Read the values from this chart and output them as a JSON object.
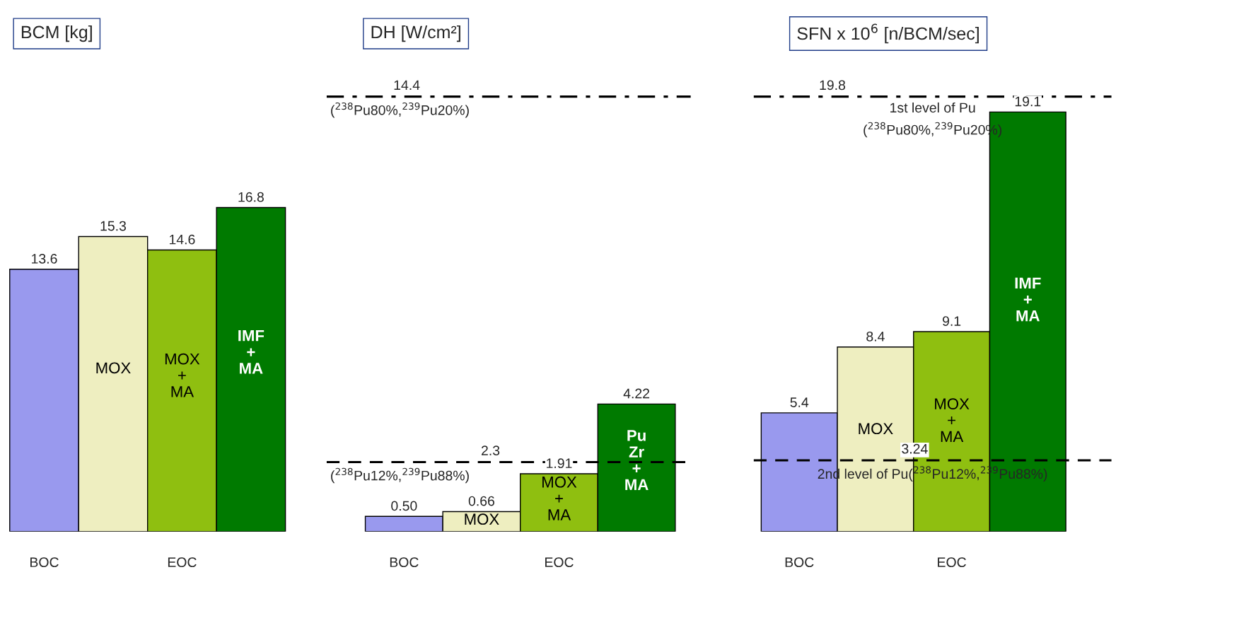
{
  "chart_data": [
    {
      "type": "bar",
      "title": "BCM [kg]",
      "categories": [
        "BOC",
        null,
        "EOC",
        null
      ],
      "tick_labels": "x",
      "legend": false,
      "data_labels": true,
      "series": [
        {
          "color": "#9999ee",
          "values": [
            13.6,
            null,
            null,
            null
          ],
          "value_labels": [
            "13.6",
            null,
            null,
            null
          ]
        },
        {
          "name": "MOX",
          "color": "#eeeec0",
          "values": [
            null,
            15.3,
            null,
            null
          ],
          "value_labels": [
            null,
            "15.3",
            null,
            null
          ]
        },
        {
          "name": "MOX\n+\nMA",
          "color": "#8fbf10",
          "values": [
            null,
            null,
            14.6,
            null
          ],
          "value_labels": [
            null,
            null,
            "14.6",
            null
          ]
        },
        {
          "name": "IMF\n+\nMA",
          "color": "#007a00",
          "values": [
            null,
            null,
            null,
            16.8
          ],
          "value_labels": [
            null,
            null,
            null,
            "16.8"
          ]
        }
      ]
    },
    {
      "type": "bar",
      "title": "DH [W/cm²]",
      "categories": [
        "BOC",
        null,
        "EOC",
        null
      ],
      "tick_labels": "x",
      "legend": false,
      "data_labels": true,
      "series": [
        {
          "color": "#9999ee",
          "values": [
            0.5,
            null,
            null,
            null
          ],
          "value_labels": [
            "0.50",
            null,
            null,
            null
          ]
        },
        {
          "name": "MOX",
          "color": "#eeeec0",
          "values": [
            null,
            0.66,
            null,
            null
          ],
          "value_labels": [
            null,
            "0.66",
            null,
            null
          ]
        },
        {
          "name": "MOX\n+\nMA",
          "color": "#8fbf10",
          "values": [
            null,
            null,
            1.91,
            null
          ],
          "value_labels": [
            null,
            null,
            "1.91",
            null
          ]
        },
        {
          "name": "Pu\nZr\n+\nMA",
          "color": "#007a00",
          "values": [
            null,
            null,
            null,
            4.22
          ],
          "value_labels": [
            null,
            null,
            null,
            "4.22"
          ]
        }
      ],
      "ref_lines": [
        {
          "axis": "y",
          "value": 14.4,
          "label": "14.4",
          "line_style": "dashdot",
          "color": "#000000"
        },
        {
          "axis": "y",
          "value": 2.3,
          "label": "2.3",
          "line_style": "dashed",
          "color": "#000000"
        }
      ],
      "annotations": [
        {
          "text": "($^{238}$Pu80%,$^{239}$Pu20%)",
          "y": 14.4
        },
        {
          "text": "($^{238}$Pu12%,$^{239}$Pu88%)",
          "y": 2.3
        }
      ]
    },
    {
      "type": "bar",
      "title": "SFN x 10$^{6}$ [n/BCM/sec]",
      "categories": [
        "BOC",
        null,
        "EOC",
        null
      ],
      "tick_labels": "x",
      "legend": false,
      "data_labels": true,
      "series": [
        {
          "color": "#9999ee",
          "values": [
            5.4,
            null,
            null,
            null
          ],
          "value_labels": [
            "5.4",
            null,
            null,
            null
          ]
        },
        {
          "name": "MOX",
          "color": "#eeeec0",
          "values": [
            null,
            8.4,
            null,
            null
          ],
          "value_labels": [
            null,
            "8.4",
            null,
            null
          ]
        },
        {
          "name": "MOX\n+\nMA",
          "color": "#8fbf10",
          "values": [
            null,
            null,
            9.1,
            null
          ],
          "value_labels": [
            null,
            null,
            "9.1",
            null
          ]
        },
        {
          "name": "IMF\n+\nMA",
          "color": "#007a00",
          "values": [
            null,
            null,
            null,
            19.1
          ],
          "value_labels": [
            null,
            null,
            null,
            "19.1"
          ]
        }
      ],
      "ref_lines": [
        {
          "axis": "y",
          "value": 19.8,
          "label": "19.8",
          "line_style": "dashdot",
          "color": "#000000"
        },
        {
          "axis": "y",
          "value": 3.24,
          "label": "3.24",
          "line_style": "dashed",
          "color": "#000000"
        }
      ],
      "annotations": [
        {
          "text": "1st level of Pu",
          "y": 19.8
        },
        {
          "text": "($^{238}$Pu80%,$^{239}$Pu20%)",
          "y": 19.8
        },
        {
          "text": "2nd level of Pu($^{238}$Pu12%,$^{239}$Pu88%)",
          "y": 3.24
        }
      ]
    }
  ]
}
